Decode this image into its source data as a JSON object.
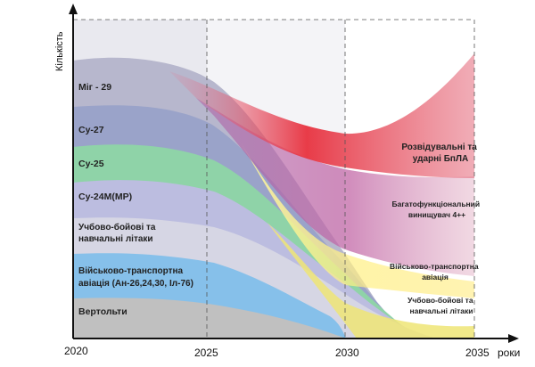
{
  "chart_data": {
    "type": "area",
    "title": "",
    "xlabel": "роки",
    "ylabel": "Кількість",
    "x_ticks": [
      "2020",
      "2025",
      "2030",
      "2035"
    ],
    "x_range": [
      2020,
      2035
    ],
    "grid": "dashed vertical lines at 2025, 2030, 2035",
    "current_fleet_series": [
      {
        "name": "Міг - 29",
        "color": "#b9b9cf"
      },
      {
        "name": "Су-27",
        "color": "#9ea6c8"
      },
      {
        "name": "Су-25",
        "color": "#a5d8b6"
      },
      {
        "name": "Су-24М(МР)",
        "color": "#c4c4e0"
      },
      {
        "name": "Учбово-бойові та навчальні літаки",
        "color": "#d8d8e4"
      },
      {
        "name": "Військово-транспортна авіація (Ан-26,24,30, Іл-76)",
        "color": "#9cc8ec"
      },
      {
        "name": "Вертольти",
        "color": "#c2c2c2"
      }
    ],
    "future_fleet_series": [
      {
        "name": "Розвідувальні та ударні БпЛА",
        "color": "#ec4a5a"
      },
      {
        "name": "Багатофункціональний винищувач 4++",
        "color": "#d48ab2"
      },
      {
        "name": "Військово-транспортна авіація",
        "color": "#f6f070"
      },
      {
        "name": "Учбово-бойові та навчальні літаки",
        "color": "#e8e070"
      }
    ]
  }
}
